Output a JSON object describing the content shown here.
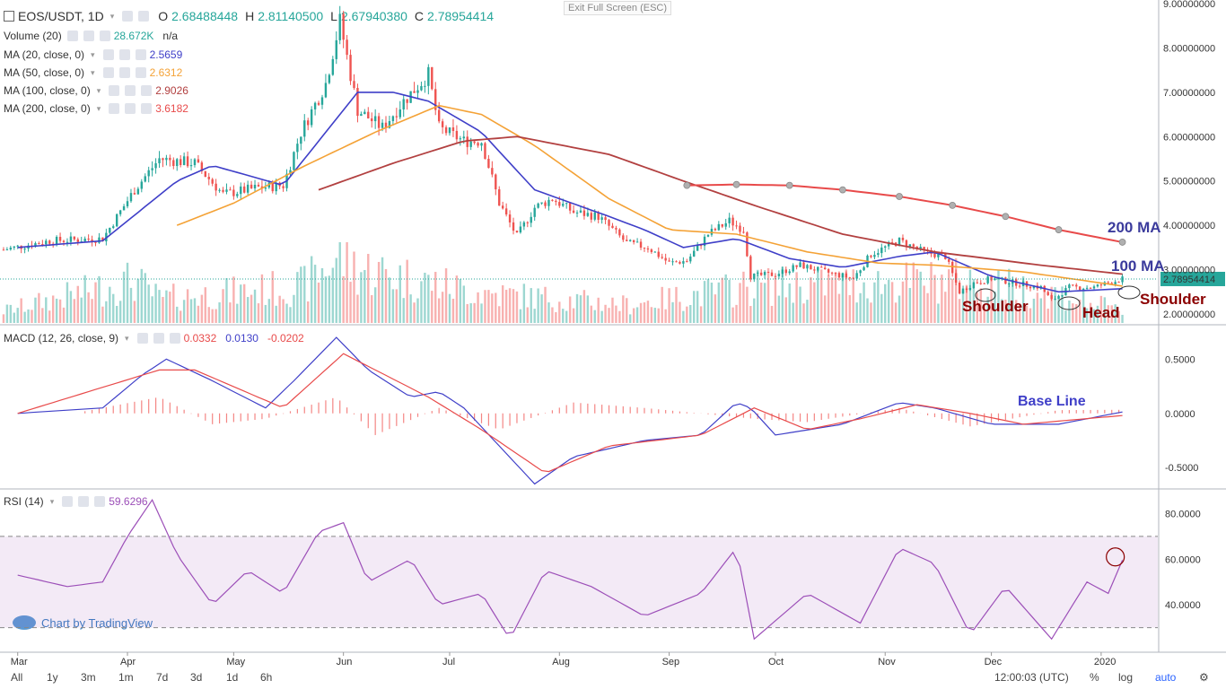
{
  "toolbar": {
    "exit_full_screen": "Exit Full Screen (ESC)"
  },
  "header": {
    "symbol": "EOS/USDT, 1D",
    "o_label": "O",
    "o": "2.68488448",
    "h_label": "H",
    "h": "2.81140500",
    "l_label": "L",
    "l": "2.67940380",
    "c_label": "C",
    "c": "2.78954414"
  },
  "indicators": [
    {
      "label": "Volume (20)",
      "value": "28.672K",
      "extra": "n/a",
      "color": "#26a69a"
    },
    {
      "label": "MA (20, close, 0)",
      "value": "2.5659",
      "color": "#3f3fc8"
    },
    {
      "label": "MA (50, close, 0)",
      "value": "2.6312",
      "color": "#f4a236"
    },
    {
      "label": "MA (100, close, 0)",
      "value": "2.9026",
      "color": "#b24040"
    },
    {
      "label": "MA (200, close, 0)",
      "value": "3.6182",
      "color": "#e84a4a"
    }
  ],
  "macd": {
    "label": "MACD (12, 26, close, 9)",
    "hist": "0.0332",
    "macd": "0.0130",
    "signal": "-0.0202"
  },
  "rsi": {
    "label": "RSI (14)",
    "value": "59.6296"
  },
  "annotations": {
    "ma200": "200 MA",
    "ma100": "100 MA",
    "left_shoulder": "Shoulder",
    "head": "Head",
    "right_shoulder": "Shoulder",
    "base_line": "Base Line"
  },
  "watermark": "Chart by TradingView",
  "price_axis": {
    "ticks": [
      "9.00000000",
      "8.00000000",
      "7.00000000",
      "6.00000000",
      "5.00000000",
      "4.00000000",
      "3.00000000",
      "2.00000000"
    ],
    "last": "2.78954414"
  },
  "macd_axis": {
    "ticks": [
      "0.5000",
      "0.0000",
      "-0.5000"
    ]
  },
  "rsi_axis": {
    "ticks": [
      "80.0000",
      "60.0000",
      "40.0000"
    ]
  },
  "time_axis": [
    "Mar",
    "Apr",
    "May",
    "Jun",
    "Jul",
    "Aug",
    "Sep",
    "Oct",
    "Nov",
    "Dec",
    "2020"
  ],
  "bottom_bar": {
    "ranges": [
      "All",
      "1y",
      "3m",
      "1m",
      "7d",
      "3d",
      "1d",
      "6h"
    ],
    "time": "12:00:03 (UTC)",
    "pct": "%",
    "log": "log",
    "auto": "auto"
  },
  "colors": {
    "up": "#26a69a",
    "down": "#ef5350",
    "ma20": "#3f3fc8",
    "ma50": "#f4a236",
    "ma100": "#b24040",
    "ma200": "#e84a4a",
    "macd": "#3f3fc8",
    "signal": "#e84a4a",
    "rsi": "#9c4fb8",
    "annotation": "#8b0000"
  },
  "chart_data": {
    "type": "candlestick",
    "panes": [
      "price",
      "macd",
      "rsi"
    ],
    "price_ylim": [
      1.75,
      9.0
    ],
    "macd_ylim": [
      -0.68,
      0.8
    ],
    "rsi_ylim": [
      20,
      90
    ],
    "rsi_band": [
      30,
      70
    ],
    "price_path": [
      [
        "2019-02-25",
        3.45
      ],
      [
        "2019-03-10",
        3.65
      ],
      [
        "2019-03-25",
        3.7
      ],
      [
        "2019-04-03",
        4.8
      ],
      [
        "2019-04-10",
        5.5
      ],
      [
        "2019-04-20",
        5.4
      ],
      [
        "2019-04-28",
        4.7
      ],
      [
        "2019-05-08",
        4.85
      ],
      [
        "2019-05-15",
        4.9
      ],
      [
        "2019-05-20",
        6.1
      ],
      [
        "2019-05-27",
        7.2
      ],
      [
        "2019-05-31",
        8.6
      ],
      [
        "2019-06-05",
        6.6
      ],
      [
        "2019-06-12",
        6.2
      ],
      [
        "2019-06-18",
        6.8
      ],
      [
        "2019-06-25",
        7.4
      ],
      [
        "2019-06-28",
        6.2
      ],
      [
        "2019-07-05",
        5.9
      ],
      [
        "2019-07-10",
        5.9
      ],
      [
        "2019-07-15",
        4.5
      ],
      [
        "2019-07-20",
        3.75
      ],
      [
        "2019-07-25",
        4.4
      ],
      [
        "2019-07-30",
        4.6
      ],
      [
        "2019-08-05",
        4.3
      ],
      [
        "2019-08-12",
        4.2
      ],
      [
        "2019-08-20",
        3.6
      ],
      [
        "2019-08-26",
        3.5
      ],
      [
        "2019-09-01",
        3.15
      ],
      [
        "2019-09-06",
        3.2
      ],
      [
        "2019-09-12",
        3.8
      ],
      [
        "2019-09-18",
        4.1
      ],
      [
        "2019-09-22",
        3.9
      ],
      [
        "2019-09-24",
        2.85
      ],
      [
        "2019-10-01",
        2.9
      ],
      [
        "2019-10-08",
        3.1
      ],
      [
        "2019-10-15",
        2.95
      ],
      [
        "2019-10-23",
        2.8
      ],
      [
        "2019-10-28",
        3.35
      ],
      [
        "2019-11-05",
        3.65
      ],
      [
        "2019-11-12",
        3.4
      ],
      [
        "2019-11-18",
        3.3
      ],
      [
        "2019-11-22",
        2.5
      ],
      [
        "2019-11-26",
        2.7
      ],
      [
        "2019-12-01",
        2.8
      ],
      [
        "2019-12-08",
        2.7
      ],
      [
        "2019-12-15",
        2.6
      ],
      [
        "2019-12-18",
        2.3
      ],
      [
        "2019-12-23",
        2.6
      ],
      [
        "2019-12-30",
        2.6
      ],
      [
        "2020-01-03",
        2.7
      ],
      [
        "2020-01-07",
        2.79
      ]
    ],
    "volume_path": [
      [
        "2019-02-25",
        0.1
      ],
      [
        "2019-04-03",
        0.35
      ],
      [
        "2019-04-10",
        0.2
      ],
      [
        "2019-05-20",
        0.3
      ],
      [
        "2019-05-31",
        0.55
      ],
      [
        "2019-06-05",
        0.45
      ],
      [
        "2019-07-10",
        0.25
      ],
      [
        "2019-08-20",
        0.15
      ],
      [
        "2019-09-24",
        0.3
      ],
      [
        "2019-11-22",
        0.35
      ],
      [
        "2019-12-18",
        0.25
      ],
      [
        "2020-01-07",
        0.1
      ]
    ],
    "ma20": [
      [
        "2019-03-01",
        3.5
      ],
      [
        "2019-03-25",
        3.65
      ],
      [
        "2019-04-15",
        5.0
      ],
      [
        "2019-04-25",
        5.35
      ],
      [
        "2019-05-15",
        4.9
      ],
      [
        "2019-06-05",
        7.0
      ],
      [
        "2019-06-15",
        7.0
      ],
      [
        "2019-06-25",
        6.8
      ],
      [
        "2019-07-10",
        6.1
      ],
      [
        "2019-07-25",
        4.8
      ],
      [
        "2019-08-15",
        4.2
      ],
      [
        "2019-08-25",
        3.9
      ],
      [
        "2019-09-05",
        3.5
      ],
      [
        "2019-09-20",
        3.7
      ],
      [
        "2019-10-05",
        3.25
      ],
      [
        "2019-10-20",
        3.05
      ],
      [
        "2019-11-05",
        3.3
      ],
      [
        "2019-11-15",
        3.4
      ],
      [
        "2019-12-01",
        2.85
      ],
      [
        "2019-12-20",
        2.5
      ],
      [
        "2020-01-07",
        2.57
      ]
    ],
    "ma50": [
      [
        "2019-04-15",
        4.0
      ],
      [
        "2019-05-01",
        4.5
      ],
      [
        "2019-05-20",
        5.3
      ],
      [
        "2019-06-10",
        6.1
      ],
      [
        "2019-06-28",
        6.7
      ],
      [
        "2019-07-10",
        6.5
      ],
      [
        "2019-07-25",
        5.8
      ],
      [
        "2019-08-15",
        4.6
      ],
      [
        "2019-09-01",
        3.9
      ],
      [
        "2019-09-20",
        3.8
      ],
      [
        "2019-10-10",
        3.4
      ],
      [
        "2019-10-30",
        3.15
      ],
      [
        "2019-11-15",
        3.1
      ],
      [
        "2019-12-10",
        2.95
      ],
      [
        "2020-01-07",
        2.63
      ]
    ],
    "ma100": [
      [
        "2019-05-25",
        4.8
      ],
      [
        "2019-06-15",
        5.4
      ],
      [
        "2019-07-05",
        5.9
      ],
      [
        "2019-07-20",
        6.0
      ],
      [
        "2019-08-15",
        5.6
      ],
      [
        "2019-09-05",
        5.0
      ],
      [
        "2019-09-25",
        4.45
      ],
      [
        "2019-10-20",
        3.8
      ],
      [
        "2019-11-15",
        3.4
      ],
      [
        "2019-12-15",
        3.1
      ],
      [
        "2020-01-07",
        2.9
      ]
    ],
    "ma200": [
      [
        "2019-09-06",
        4.9
      ],
      [
        "2019-09-20",
        4.92
      ],
      [
        "2019-10-05",
        4.9
      ],
      [
        "2019-10-20",
        4.8
      ],
      [
        "2019-11-05",
        4.65
      ],
      [
        "2019-11-20",
        4.45
      ],
      [
        "2019-12-05",
        4.2
      ],
      [
        "2019-12-20",
        3.9
      ],
      [
        "2020-01-07",
        3.62
      ]
    ],
    "macd_line": [
      [
        "2019-03-01",
        0.0
      ],
      [
        "2019-03-25",
        0.05
      ],
      [
        "2019-04-05",
        0.35
      ],
      [
        "2019-04-12",
        0.5
      ],
      [
        "2019-04-25",
        0.3
      ],
      [
        "2019-05-10",
        0.05
      ],
      [
        "2019-05-18",
        0.3
      ],
      [
        "2019-05-30",
        0.7
      ],
      [
        "2019-06-08",
        0.4
      ],
      [
        "2019-06-20",
        0.15
      ],
      [
        "2019-06-28",
        0.2
      ],
      [
        "2019-07-05",
        0.05
      ],
      [
        "2019-07-15",
        -0.3
      ],
      [
        "2019-07-25",
        -0.65
      ],
      [
        "2019-08-05",
        -0.4
      ],
      [
        "2019-08-25",
        -0.25
      ],
      [
        "2019-09-10",
        -0.2
      ],
      [
        "2019-09-20",
        0.1
      ],
      [
        "2019-09-24",
        0.05
      ],
      [
        "2019-10-01",
        -0.2
      ],
      [
        "2019-10-20",
        -0.1
      ],
      [
        "2019-11-05",
        0.1
      ],
      [
        "2019-11-15",
        0.05
      ],
      [
        "2019-12-01",
        -0.1
      ],
      [
        "2019-12-20",
        -0.1
      ],
      [
        "2020-01-07",
        0.013
      ]
    ],
    "macd_signal": [
      [
        "2019-03-01",
        0.0
      ],
      [
        "2019-04-10",
        0.4
      ],
      [
        "2019-04-20",
        0.4
      ],
      [
        "2019-05-15",
        0.05
      ],
      [
        "2019-06-01",
        0.55
      ],
      [
        "2019-06-10",
        0.4
      ],
      [
        "2019-06-25",
        0.15
      ],
      [
        "2019-07-10",
        -0.15
      ],
      [
        "2019-07-28",
        -0.55
      ],
      [
        "2019-08-15",
        -0.3
      ],
      [
        "2019-09-10",
        -0.2
      ],
      [
        "2019-09-25",
        0.05
      ],
      [
        "2019-10-10",
        -0.15
      ],
      [
        "2019-10-25",
        -0.05
      ],
      [
        "2019-11-10",
        0.08
      ],
      [
        "2019-11-25",
        0.0
      ],
      [
        "2019-12-10",
        -0.1
      ],
      [
        "2020-01-07",
        -0.02
      ]
    ],
    "macd_hist": [
      [
        "2019-03-20",
        0.02
      ],
      [
        "2019-04-10",
        0.15
      ],
      [
        "2019-04-25",
        -0.1
      ],
      [
        "2019-05-10",
        -0.05
      ],
      [
        "2019-05-30",
        0.15
      ],
      [
        "2019-06-10",
        -0.2
      ],
      [
        "2019-06-28",
        0.05
      ],
      [
        "2019-07-15",
        -0.15
      ],
      [
        "2019-08-05",
        0.1
      ],
      [
        "2019-08-25",
        0.05
      ],
      [
        "2019-09-25",
        -0.05
      ],
      [
        "2019-10-10",
        -0.08
      ],
      [
        "2019-11-05",
        0.05
      ],
      [
        "2019-11-25",
        -0.12
      ],
      [
        "2019-12-20",
        0.03
      ],
      [
        "2020-01-07",
        0.033
      ]
    ],
    "rsi_path": [
      [
        "2019-03-01",
        53
      ],
      [
        "2019-03-15",
        48
      ],
      [
        "2019-03-25",
        50
      ],
      [
        "2019-04-01",
        70
      ],
      [
        "2019-04-08",
        86
      ],
      [
        "2019-04-15",
        62
      ],
      [
        "2019-04-25",
        40
      ],
      [
        "2019-05-05",
        55
      ],
      [
        "2019-05-15",
        45
      ],
      [
        "2019-05-25",
        72
      ],
      [
        "2019-06-01",
        76
      ],
      [
        "2019-06-08",
        50
      ],
      [
        "2019-06-20",
        60
      ],
      [
        "2019-06-28",
        40
      ],
      [
        "2019-07-10",
        45
      ],
      [
        "2019-07-18",
        25
      ],
      [
        "2019-07-28",
        55
      ],
      [
        "2019-08-10",
        48
      ],
      [
        "2019-08-25",
        35
      ],
      [
        "2019-09-10",
        45
      ],
      [
        "2019-09-20",
        65
      ],
      [
        "2019-09-25",
        25
      ],
      [
        "2019-10-10",
        45
      ],
      [
        "2019-10-25",
        32
      ],
      [
        "2019-11-05",
        65
      ],
      [
        "2019-11-15",
        58
      ],
      [
        "2019-11-25",
        27
      ],
      [
        "2019-12-05",
        48
      ],
      [
        "2019-12-18",
        25
      ],
      [
        "2019-12-28",
        50
      ],
      [
        "2020-01-03",
        45
      ],
      [
        "2020-01-07",
        59.6
      ]
    ],
    "x_range": [
      "2019-02-24",
      "2020-01-17"
    ]
  }
}
